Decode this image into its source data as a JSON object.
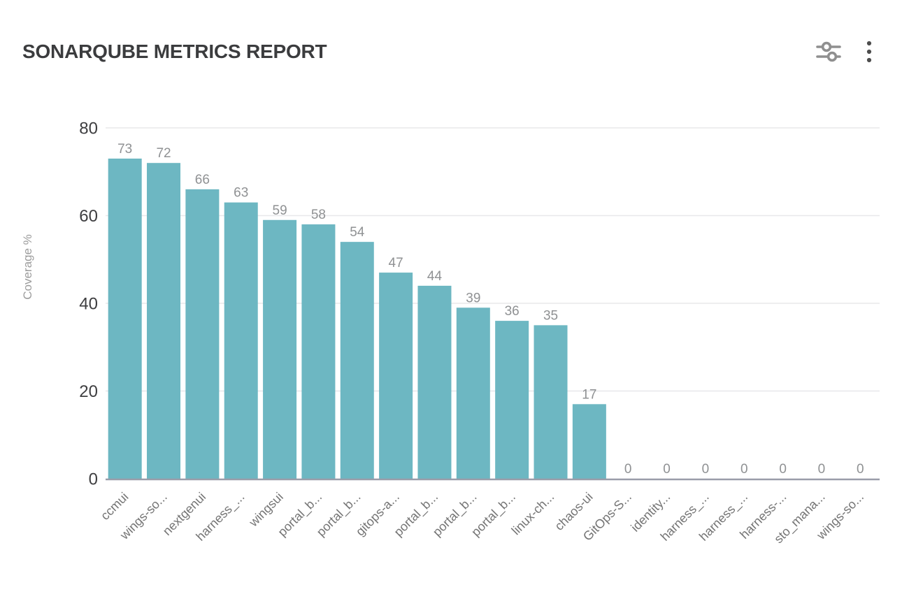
{
  "header": {
    "title": "SONARQUBE METRICS REPORT",
    "filter_button": {
      "icon": "sliders-icon"
    },
    "menu_button": {
      "icon": "kebab-menu-icon"
    }
  },
  "chart_data": {
    "type": "bar",
    "title": "SONARQUBE METRICS REPORT",
    "categories": [
      "ccmui",
      "wings-so...",
      "nextgenui",
      "harness_...",
      "wingsui",
      "portal_b...",
      "portal_b...",
      "gitops-a...",
      "portal_b...",
      "portal_b...",
      "portal_b...",
      "linux-ch...",
      "chaos-ui",
      "GitOps-S...",
      "identity...",
      "harness_...",
      "harness_...",
      "harness-...",
      "sto_mana...",
      "wings-so..."
    ],
    "values": [
      73,
      72,
      66,
      63,
      59,
      58,
      54,
      47,
      44,
      39,
      36,
      35,
      17,
      0,
      0,
      0,
      0,
      0,
      0,
      0
    ],
    "xlabel": "",
    "ylabel": "Coverage %",
    "ylim": [
      0,
      80
    ],
    "yticks": [
      0,
      20,
      40,
      60,
      80
    ],
    "grid": true,
    "legend": false,
    "value_labels": true,
    "x_label_rotation": 45
  },
  "colors": {
    "bar": "#6db7c2",
    "gridline": "#e8e8ea",
    "axis_line": "#9a9da9",
    "ytick_label": "#3e3e40",
    "value_label": "#8f9193",
    "xcategory_label": "#747474",
    "yaxis_title": "#9c9c9c",
    "title": "#3b3c3e",
    "icon_gray": "#8f8f8f",
    "icon_dark": "#4d4d4d"
  }
}
